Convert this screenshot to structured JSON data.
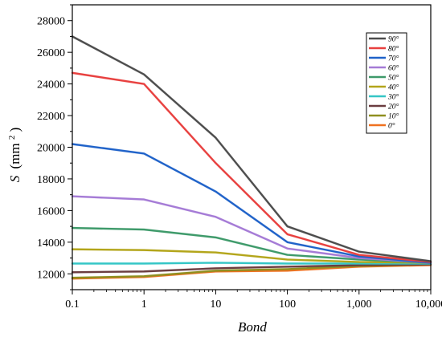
{
  "chart_data": {
    "type": "line",
    "xlabel": "Bond",
    "ylabel_main": "S",
    "ylabel_unit": "(mm",
    "ylabel_sup": "2",
    "ylabel_close": ")",
    "x": [
      0.1,
      1,
      10,
      100,
      1000,
      10000
    ],
    "xscale": "log",
    "x_tick_labels": [
      "0.1",
      "1",
      "10",
      "100",
      "1,000",
      "10,000"
    ],
    "xlim": [
      0.1,
      10000
    ],
    "ylim": [
      11000,
      29000
    ],
    "y_ticks": [
      12000,
      14000,
      16000,
      18000,
      20000,
      22000,
      24000,
      26000,
      28000
    ],
    "y_tick_labels": [
      "12000",
      "14000",
      "16000",
      "18000",
      "20000",
      "22000",
      "24000",
      "26000",
      "28000"
    ],
    "legend_position": "top-right",
    "series": [
      {
        "name": "90°",
        "color": "#4d4d4d",
        "values": [
          27000,
          24600,
          20600,
          15000,
          13400,
          12800
        ]
      },
      {
        "name": "80°",
        "color": "#e8403f",
        "values": [
          24700,
          24000,
          19000,
          14500,
          13200,
          12750
        ]
      },
      {
        "name": "70°",
        "color": "#1f62c9",
        "values": [
          20200,
          19600,
          17200,
          14000,
          13100,
          12700
        ]
      },
      {
        "name": "60°",
        "color": "#a57bd6",
        "values": [
          16900,
          16700,
          15600,
          13600,
          13000,
          12700
        ]
      },
      {
        "name": "50°",
        "color": "#3e9a6a",
        "values": [
          14900,
          14800,
          14300,
          13200,
          12900,
          12700
        ]
      },
      {
        "name": "40°",
        "color": "#b3a51a",
        "values": [
          13550,
          13500,
          13350,
          12900,
          12750,
          12700
        ]
      },
      {
        "name": "30°",
        "color": "#35c6c6",
        "values": [
          12650,
          12650,
          12700,
          12650,
          12650,
          12650
        ]
      },
      {
        "name": "20°",
        "color": "#6b3d40",
        "values": [
          12100,
          12150,
          12350,
          12450,
          12550,
          12600
        ]
      },
      {
        "name": "10°",
        "color": "#8f8f20",
        "values": [
          11750,
          11850,
          12200,
          12300,
          12500,
          12600
        ]
      },
      {
        "name": "0°",
        "color": "#ef7120",
        "values": [
          11700,
          11800,
          12150,
          12200,
          12450,
          12550
        ]
      }
    ]
  }
}
